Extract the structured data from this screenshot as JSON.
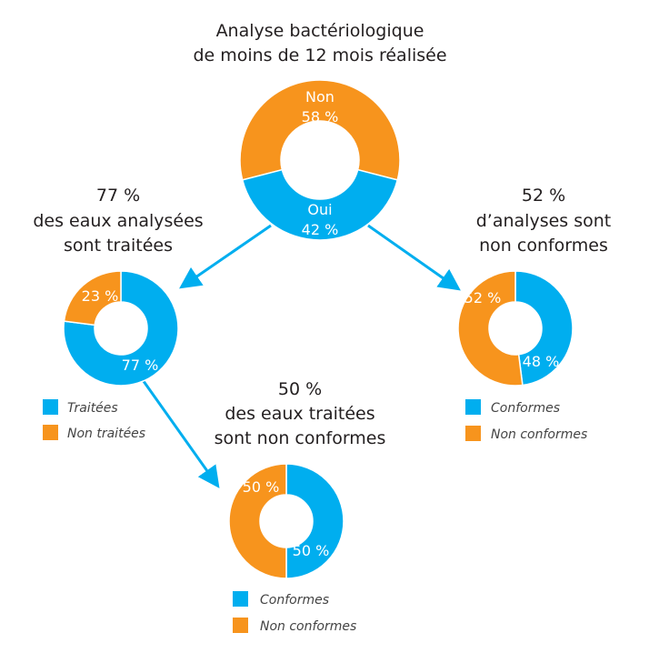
{
  "colors": {
    "blue": "#00aeef",
    "orange": "#f7941d"
  },
  "chart_data": [
    {
      "type": "pie",
      "id": "main",
      "title": [
        "Analyse bactériologique",
        "de moins de 12 mois réalisée"
      ],
      "slices": [
        {
          "name": "Non",
          "value": 58,
          "label": "58 %",
          "color": "#f7941d"
        },
        {
          "name": "Oui",
          "value": 42,
          "label": "42 %",
          "color": "#00aeef"
        }
      ]
    },
    {
      "type": "pie",
      "id": "treated",
      "title": [
        "77 %",
        "des eaux analysées",
        "sont traitées"
      ],
      "slices": [
        {
          "name": "Traitées",
          "value": 77,
          "label": "77 %",
          "color": "#00aeef"
        },
        {
          "name": "Non traitées",
          "value": 23,
          "label": "23 %",
          "color": "#f7941d"
        }
      ],
      "legend": [
        "Traitées",
        "Non traitées"
      ]
    },
    {
      "type": "pie",
      "id": "conformity",
      "title": [
        "52 %",
        "d’analyses sont",
        "non conformes"
      ],
      "slices": [
        {
          "name": "Conformes",
          "value": 48,
          "label": "48 %",
          "color": "#00aeef"
        },
        {
          "name": "Non conformes",
          "value": 52,
          "label": "52 %",
          "color": "#f7941d"
        }
      ],
      "legend": [
        "Conformes",
        "Non conformes"
      ]
    },
    {
      "type": "pie",
      "id": "treated-conformity",
      "title": [
        "50 %",
        "des eaux traitées",
        "sont non conformes"
      ],
      "slices": [
        {
          "name": "Conformes",
          "value": 50,
          "label": "50 %",
          "color": "#00aeef"
        },
        {
          "name": "Non conformes",
          "value": 50,
          "label": "50 %",
          "color": "#f7941d"
        }
      ],
      "legend": [
        "Conformes",
        "Non conformes"
      ]
    }
  ]
}
